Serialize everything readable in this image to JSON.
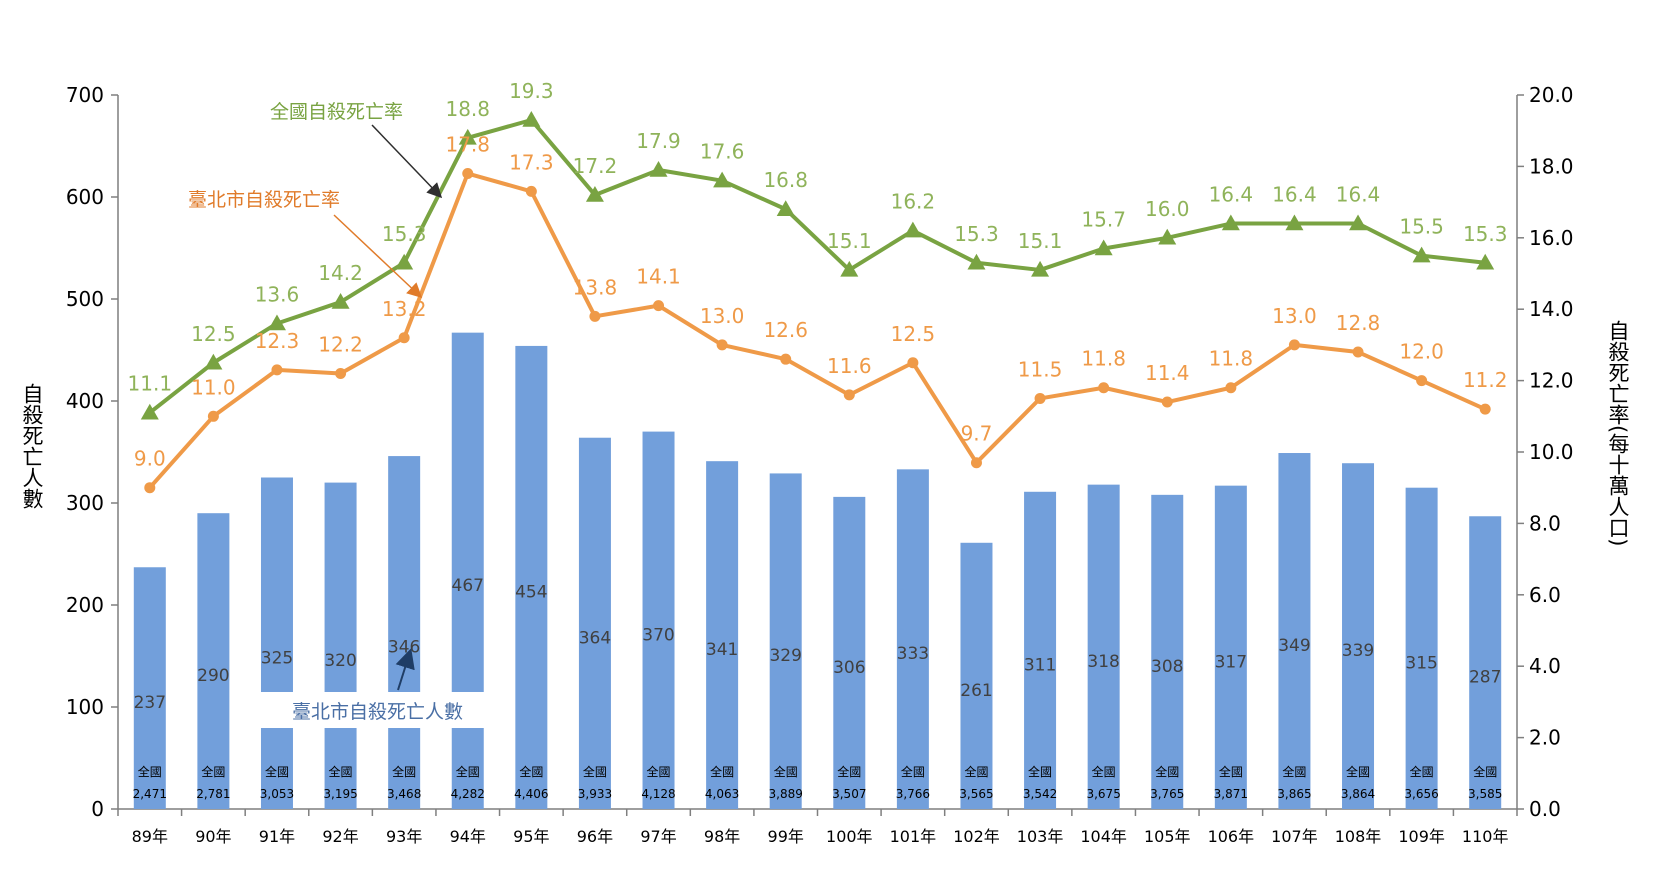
{
  "chart_data": {
    "type": "bar",
    "categories": [
      "89年",
      "90年",
      "91年",
      "92年",
      "93年",
      "94年",
      "95年",
      "96年",
      "97年",
      "98年",
      "99年",
      "100年",
      "101年",
      "102年",
      "103年",
      "104年",
      "105年",
      "106年",
      "107年",
      "108年",
      "109年",
      "110年"
    ],
    "left_axis": {
      "label": "自殺死亡人數",
      "range": [
        0,
        700
      ],
      "ticks": [
        "0",
        "100",
        "200",
        "300",
        "400",
        "500",
        "600",
        "700"
      ]
    },
    "right_axis": {
      "label": "自殺死亡率(每十萬人口)",
      "range": [
        0,
        20
      ],
      "ticks": [
        "0.0",
        "2.0",
        "4.0",
        "6.0",
        "8.0",
        "10.0",
        "12.0",
        "14.0",
        "16.0",
        "18.0",
        "20.0"
      ]
    },
    "bar_series": {
      "name": "臺北市自殺死亡人數",
      "color": "#729fdb",
      "values": [
        237,
        290,
        325,
        320,
        346,
        467,
        454,
        364,
        370,
        341,
        329,
        306,
        333,
        261,
        311,
        318,
        308,
        317,
        349,
        339,
        315,
        287
      ]
    },
    "national_counts": {
      "label": "全國",
      "values": [
        "2,471",
        "2,781",
        "3,053",
        "3,195",
        "3,468",
        "4,282",
        "4,406",
        "3,933",
        "4,128",
        "4,063",
        "3,889",
        "3,507",
        "3,766",
        "3,565",
        "3,542",
        "3,675",
        "3,765",
        "3,871",
        "3,865",
        "3,864",
        "3,656",
        "3,585"
      ]
    },
    "line_series": [
      {
        "name": "全國自殺死亡率",
        "color": "#79a342",
        "label_color": "#8fb35a",
        "marker": "triangle",
        "values": [
          11.1,
          12.5,
          13.6,
          14.2,
          15.3,
          18.8,
          19.3,
          17.2,
          17.9,
          17.6,
          16.8,
          15.1,
          16.2,
          15.3,
          15.1,
          15.7,
          16.0,
          16.4,
          16.4,
          16.4,
          15.5,
          15.3
        ],
        "labels": [
          "11.1",
          "12.5",
          "13.6",
          "14.2",
          "15.3",
          "18.8",
          "19.3",
          "17.2",
          "17.9",
          "17.6",
          "16.8",
          "15.1",
          "16.2",
          "15.3",
          "15.1",
          "15.7",
          "16.0",
          "16.4",
          "16.4",
          "16.4",
          "15.5",
          "15.3"
        ]
      },
      {
        "name": "臺北市自殺死亡率",
        "color": "#ef9a48",
        "label_color": "#ef9a48",
        "marker": "circle",
        "values": [
          9.0,
          11.0,
          12.3,
          12.2,
          13.2,
          17.8,
          17.3,
          13.8,
          14.1,
          13.0,
          12.6,
          11.6,
          12.5,
          9.7,
          11.5,
          11.8,
          11.4,
          11.8,
          13.0,
          12.8,
          12.0,
          11.2
        ],
        "labels": [
          "9.0",
          "11.0",
          "12.3",
          "12.2",
          "13.2",
          "17.8",
          "17.3",
          "13.8",
          "14.1",
          "13.0",
          "12.6",
          "11.6",
          "12.5",
          "9.7",
          "11.5",
          "11.8",
          "11.4",
          "11.8",
          "13.0",
          "12.8",
          "12.0",
          "11.2"
        ]
      }
    ],
    "annotations": {
      "national_rate": {
        "text": "全國自殺死亡率",
        "color": "#79a342"
      },
      "taipei_rate": {
        "text": "臺北市自殺死亡率",
        "color": "#e07b2a"
      },
      "taipei_count": {
        "text": "臺北市自殺死亡人數",
        "color": "#4a6fa5"
      }
    }
  }
}
